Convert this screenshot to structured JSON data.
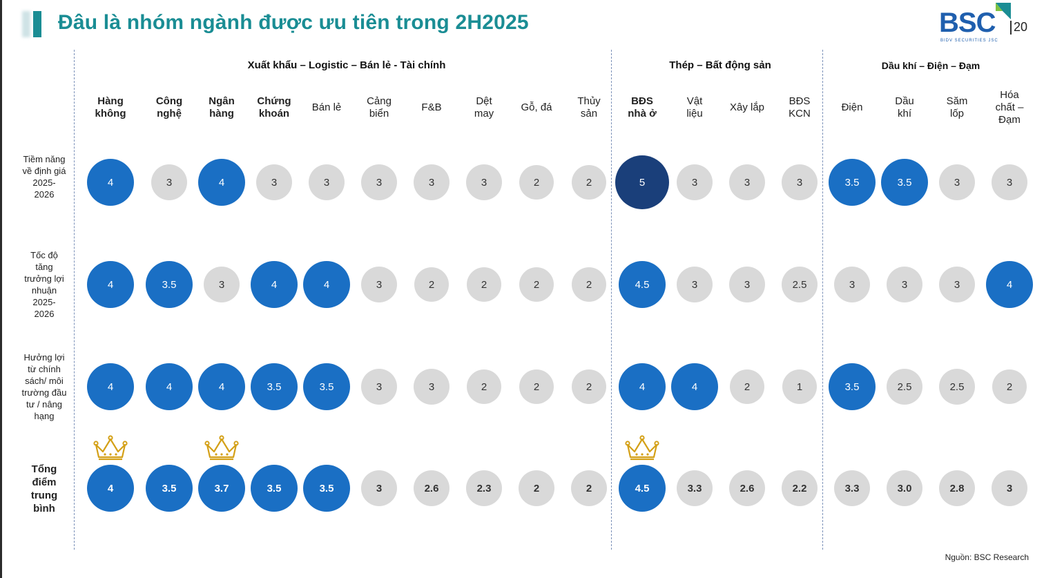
{
  "title": "Đâu là nhóm ngành được ưu tiên trong 2H2025",
  "logo": {
    "brand": "BSC",
    "tagline": "BIDV SECURITIES JSC"
  },
  "page_number": "20",
  "source": "Nguồn: BSC Research",
  "groups": [
    "Xuất khẩu – Logistic – Bán lẻ - Tài chính",
    "Thép – Bất động sản",
    "Dầu khí – Điện – Đạm"
  ],
  "columns": [
    {
      "label": "Hàng\nkhông",
      "bold": true
    },
    {
      "label": "Công\nnghệ",
      "bold": true
    },
    {
      "label": "Ngân\nhàng",
      "bold": true
    },
    {
      "label": "Chứng\nkhoán",
      "bold": true
    },
    {
      "label": "Bán lẻ",
      "bold": false
    },
    {
      "label": "Cảng\nbiển",
      "bold": false
    },
    {
      "label": "F&B",
      "bold": false
    },
    {
      "label": "Dệt\nmay",
      "bold": false
    },
    {
      "label": "Gỗ, đá",
      "bold": false
    },
    {
      "label": "Thủy\nsản",
      "bold": false
    },
    {
      "label": "BĐS\nnhà ở",
      "bold": true
    },
    {
      "label": "Vật\nliệu",
      "bold": false
    },
    {
      "label": "Xây lắp",
      "bold": false
    },
    {
      "label": "BĐS\nKCN",
      "bold": false
    },
    {
      "label": "Điện",
      "bold": false
    },
    {
      "label": "Dầu\nkhí",
      "bold": false
    },
    {
      "label": "Săm\nlốp",
      "bold": false
    },
    {
      "label": "Hóa\nchất –\nĐạm",
      "bold": false
    }
  ],
  "rows": [
    {
      "label": "Tiềm năng\nvề định giá\n2025-\n2026",
      "bold": false,
      "values": [
        "4",
        "3",
        "4",
        "3",
        "3",
        "3",
        "3",
        "3",
        "2",
        "2",
        "5",
        "3",
        "3",
        "3",
        "3.5",
        "3.5",
        "3",
        "3"
      ]
    },
    {
      "label": "Tốc độ\ntăng\ntrưởng lợi\nnhuận\n2025-\n2026",
      "bold": false,
      "values": [
        "4",
        "3.5",
        "3",
        "4",
        "4",
        "3",
        "2",
        "2",
        "2",
        "2",
        "4.5",
        "3",
        "3",
        "2.5",
        "3",
        "3",
        "3",
        "4"
      ]
    },
    {
      "label": "Hưởng lợi\ntừ chính\nsách/ môi\ntrường đầu\ntư / nâng\nhạng",
      "bold": false,
      "values": [
        "4",
        "4",
        "4",
        "3.5",
        "3.5",
        "3",
        "3",
        "2",
        "2",
        "2",
        "4",
        "4",
        "2",
        "1",
        "3.5",
        "2.5",
        "2.5",
        "2"
      ]
    },
    {
      "label": "Tổng\nđiểm\ntrung\nbình",
      "bold": true,
      "values": [
        "4",
        "3.5",
        "3.7",
        "3.5",
        "3.5",
        "3",
        "2.6",
        "2.3",
        "2",
        "2",
        "4.5",
        "3.3",
        "2.6",
        "2.2",
        "3.3",
        "3.0",
        "2.8",
        "3"
      ]
    }
  ],
  "crowned_columns": [
    0,
    2,
    10
  ],
  "colors": {
    "title": "#1a8d94",
    "high": "#1a6fc4",
    "top": "#1a3f7a",
    "neutral": "#d9d9d9",
    "crown": "#d4a017"
  }
}
